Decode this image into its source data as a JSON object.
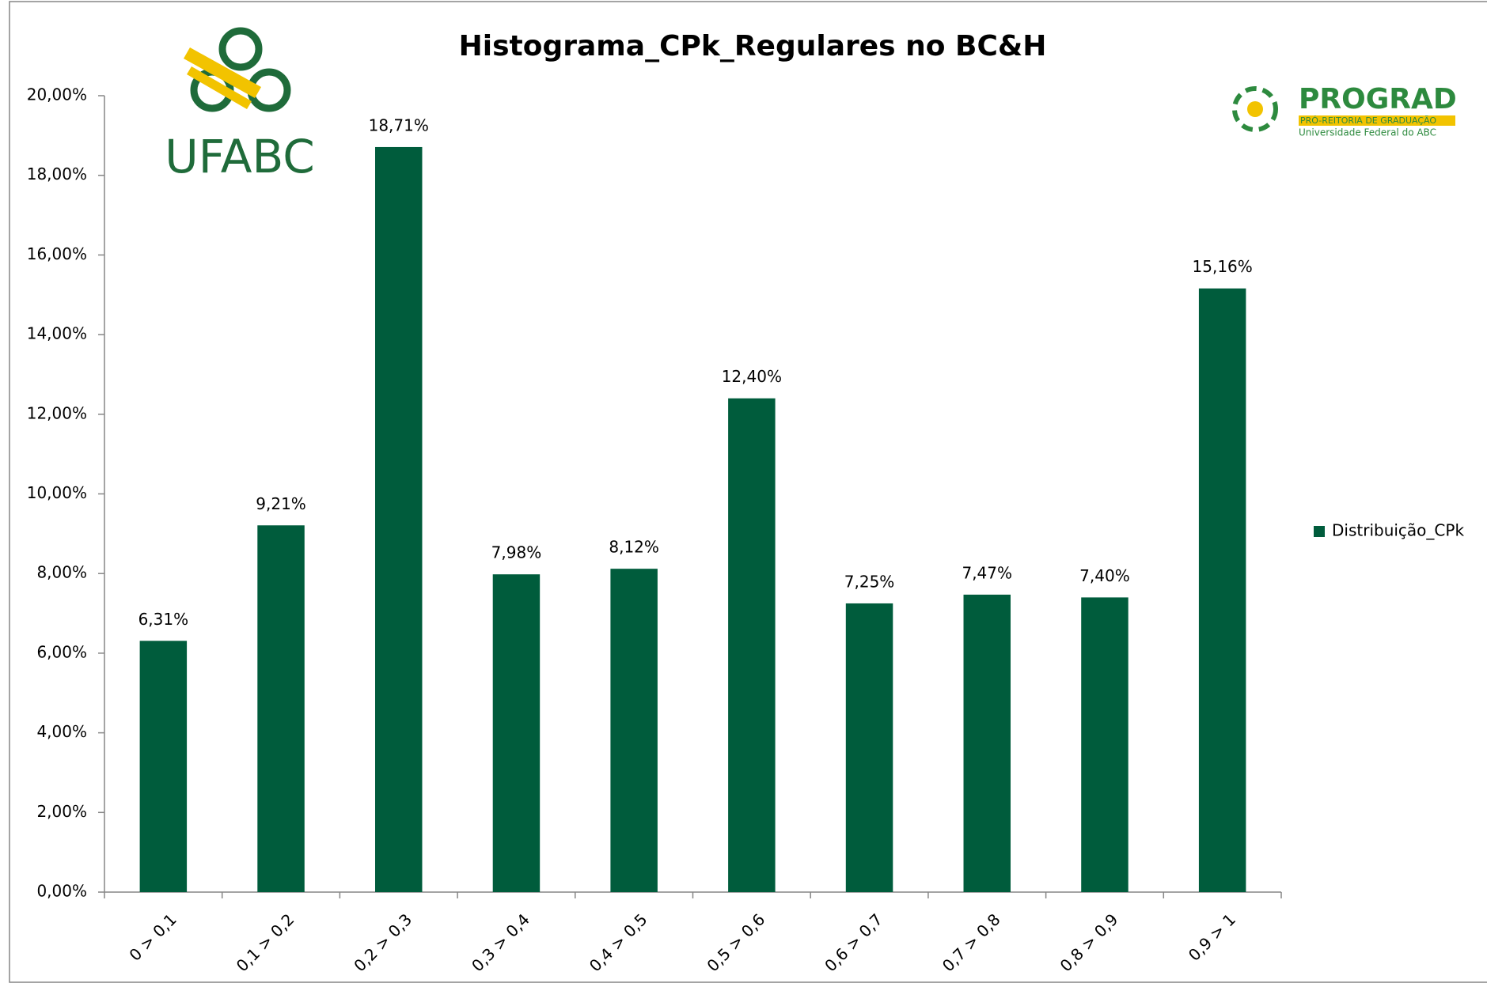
{
  "chart_data": {
    "type": "bar",
    "title": "Histograma_CPk_Regulares no BC&H",
    "categories": [
      "0 > 0,1",
      "0,1 > 0,2",
      "0,2 > 0,3",
      "0,3 > 0,4",
      "0,4 > 0,5",
      "0,5 > 0,6",
      "0,6 > 0,7",
      "0,7 > 0,8",
      "0,8 > 0,9",
      "0,9 > 1"
    ],
    "series": [
      {
        "name": "Distribuição_CPk",
        "color": "#005c3c",
        "values": [
          6.31,
          9.21,
          18.71,
          7.98,
          8.12,
          12.4,
          7.25,
          7.47,
          7.4,
          15.16
        ],
        "value_labels": [
          "6,31%",
          "9,21%",
          "18,71%",
          "7,98%",
          "8,12%",
          "12,40%",
          "7,25%",
          "7,47%",
          "7,40%",
          "15,16%"
        ]
      }
    ],
    "ylim": [
      0,
      20
    ],
    "yticks": [
      {
        "value": 0,
        "label": "0,00%"
      },
      {
        "value": 2,
        "label": "2,00%"
      },
      {
        "value": 4,
        "label": "4,00%"
      },
      {
        "value": 6,
        "label": "6,00%"
      },
      {
        "value": 8,
        "label": "8,00%"
      },
      {
        "value": 10,
        "label": "10,00%"
      },
      {
        "value": 12,
        "label": "12,00%"
      },
      {
        "value": 14,
        "label": "14,00%"
      },
      {
        "value": 16,
        "label": "16,00%"
      },
      {
        "value": 18,
        "label": "18,00%"
      },
      {
        "value": 20,
        "label": "20,00%"
      }
    ],
    "legend": "right",
    "logo_left": "UFABC",
    "logo_right": {
      "name": "PROGRAD",
      "line1": "PRÓ-REITORIA DE GRADUAÇÃO",
      "line2": "Universidade Federal do ABC"
    }
  }
}
